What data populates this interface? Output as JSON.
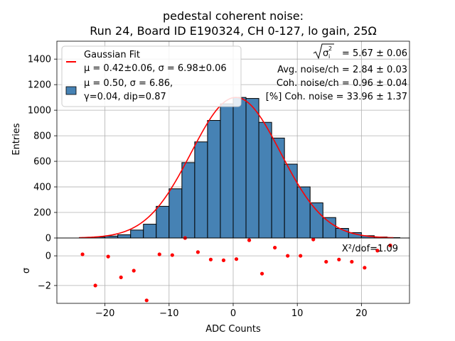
{
  "chart_data": [
    {
      "type": "bar",
      "title": "pedestal coherent noise:",
      "subtitle": "Run 24, Board ID E190324, CH 0-127, lo gain, 25Ω",
      "xlabel": "",
      "ylabel": "Entries",
      "xlim": [
        -27.5,
        27.5
      ],
      "ylim": [
        0,
        1540
      ],
      "xticks": [],
      "yticks": [
        0,
        200,
        400,
        600,
        800,
        1000,
        1200,
        1400
      ],
      "grid": true,
      "bin_edges": [
        -24,
        -22,
        -20,
        -18,
        -16,
        -14,
        -12,
        -10,
        -8,
        -6,
        -4,
        -2,
        0,
        2,
        4,
        6,
        8,
        10,
        12,
        14,
        16,
        18,
        20,
        22,
        24,
        26
      ],
      "values": [
        3,
        8,
        15,
        25,
        62,
        108,
        248,
        385,
        590,
        752,
        920,
        1050,
        1100,
        1092,
        905,
        782,
        578,
        400,
        275,
        160,
        75,
        42,
        18,
        8,
        3
      ],
      "bar_color": "#4682b4",
      "fit": {
        "model": "gaussian",
        "mu": 0.42,
        "sigma": 6.98,
        "amplitude": 1100,
        "color": "#ff0000"
      },
      "legend": {
        "position": "top-left",
        "entries": [
          {
            "label_line1": "Gaussian Fit",
            "label_line2": "μ = 0.42±0.06, σ = 6.98±0.06",
            "marker": "line",
            "color": "#ff0000"
          },
          {
            "label_line1": "μ = 0.50, σ = 6.86,",
            "label_line2": "γ=0.04, dip=0.87",
            "marker": "box",
            "color": "#4682b4"
          }
        ]
      },
      "annotations": [
        {
          "id": "sigma",
          "sqrt_base": "σ",
          "sup": "2",
          "sub": "i",
          "value": "= 5.67 ± 0.06"
        },
        {
          "id": "avg",
          "text": "Avg. noise/ch = 2.84 ± 0.03"
        },
        {
          "id": "coh",
          "text": "Coh. noise/ch = 0.96 ± 0.04"
        },
        {
          "id": "pct",
          "text": "[%] Coh. noise = 33.96  ± 1.37"
        }
      ]
    },
    {
      "type": "scatter",
      "xlabel": "ADC Counts",
      "ylabel": "σ",
      "xlim": [
        -27.5,
        27.5
      ],
      "ylim": [
        -3.2,
        1.2
      ],
      "xticks": [
        -20,
        -10,
        0,
        10,
        20
      ],
      "yticks": [
        -2,
        0
      ],
      "grid": true,
      "marker_color": "#ff0000",
      "annotation": "X²/dof=1.09",
      "x": [
        -23.5,
        -21.5,
        -19.5,
        -17.5,
        -15.5,
        -13.5,
        -11.5,
        -9.5,
        -7.5,
        -5.5,
        -3.5,
        -1.5,
        0.5,
        2.5,
        4.5,
        6.5,
        8.5,
        10.5,
        12.5,
        14.5,
        16.5,
        18.5,
        20.5,
        22.5,
        24.5
      ],
      "y": [
        0.1,
        -2.0,
        -0.05,
        -1.45,
        -1.0,
        -3.0,
        0.1,
        0.05,
        1.2,
        0.25,
        -0.25,
        -0.3,
        -0.22,
        1.05,
        -1.2,
        0.55,
        0.0,
        0.0,
        1.1,
        -0.4,
        -0.25,
        -0.4,
        -0.8,
        0.35,
        0.7
      ]
    }
  ]
}
